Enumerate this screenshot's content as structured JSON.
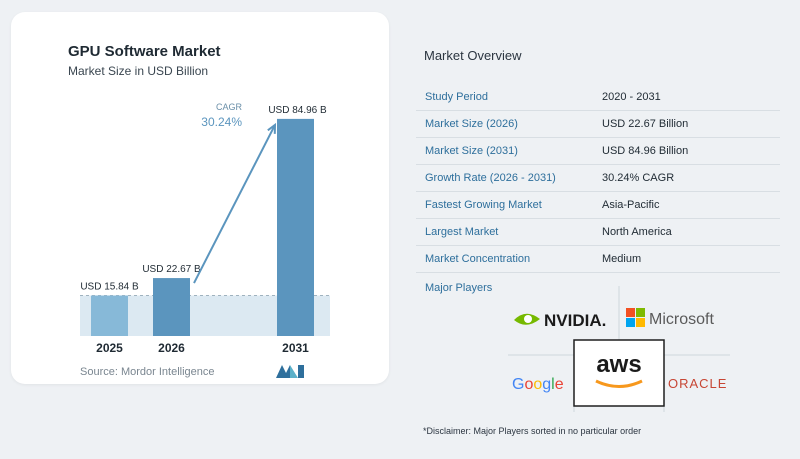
{
  "chart": {
    "title": "GPU Software Market",
    "subtitle": "Market Size in USD Billion",
    "source": "Source:  Mordor Intelligence",
    "cagr_label": "CAGR",
    "cagr_value": "30.24%",
    "colors": {
      "bar": "#5b95be",
      "bar_light": "#87b9d8",
      "band": "#dce9f2",
      "arrow": "#5b95be"
    }
  },
  "chart_data": {
    "type": "bar",
    "categories": [
      "2025",
      "2026",
      "2031"
    ],
    "values": [
      15.84,
      22.67,
      84.96
    ],
    "value_labels": [
      "USD 15.84 B",
      "USD 22.67 B",
      "USD 84.96 B"
    ],
    "title": "GPU Software Market",
    "subtitle": "Market Size in USD Billion",
    "ylim": [
      0,
      90
    ],
    "annotation": {
      "text": "CAGR 30.24%",
      "from": "2026",
      "to": "2031"
    }
  },
  "overview": {
    "title": "Market Overview",
    "rows": [
      {
        "key": "Study Period",
        "value": "2020 - 2031"
      },
      {
        "key": "Market Size (2026)",
        "value": "USD 22.67 Billion"
      },
      {
        "key": "Market Size (2031)",
        "value": "USD 84.96 Billion"
      },
      {
        "key": "Growth Rate (2026 - 2031)",
        "value": "30.24% CAGR"
      },
      {
        "key": "Fastest Growing Market",
        "value": "Asia-Pacific"
      },
      {
        "key": "Largest Market",
        "value": "North America"
      },
      {
        "key": "Market Concentration",
        "value": "Medium"
      }
    ]
  },
  "players": {
    "title": "Major Players",
    "names": [
      "NVIDIA.",
      "Microsoft",
      "aws",
      "Google",
      "ORACLE"
    ]
  },
  "disclaimer": "*Disclaimer: Major Players sorted in no particular order"
}
